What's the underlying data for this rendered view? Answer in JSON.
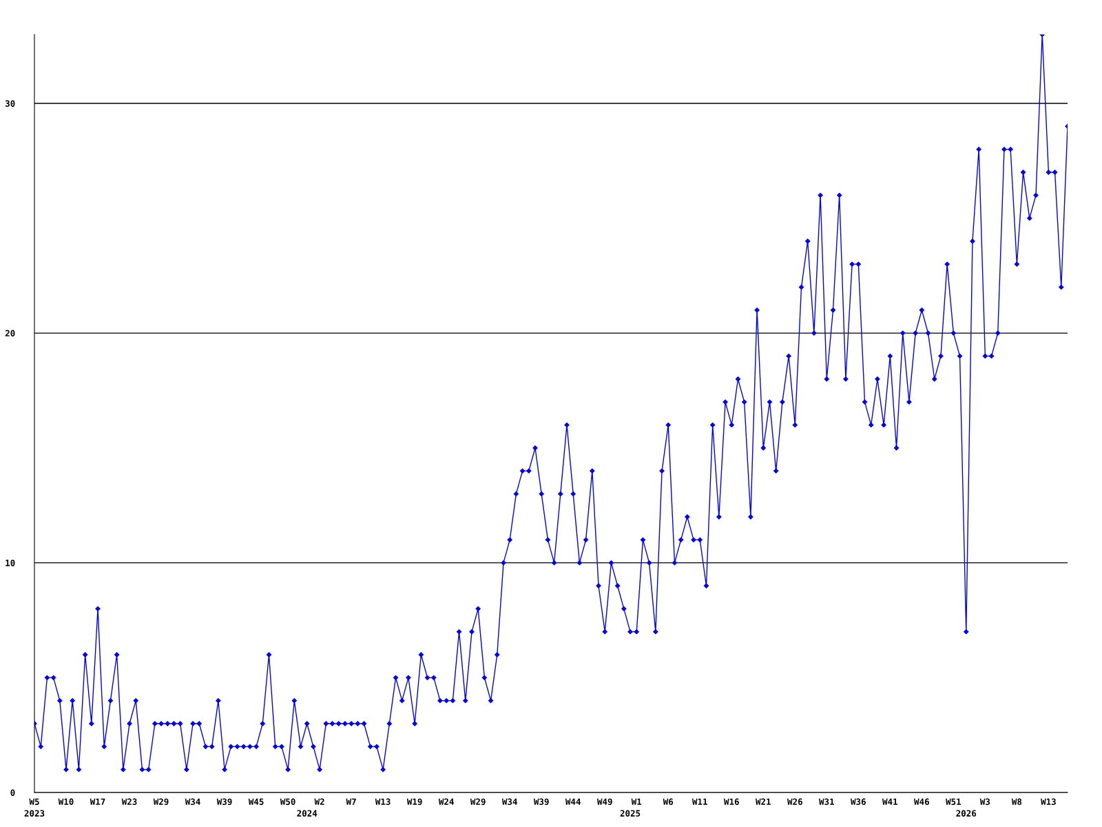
{
  "chart_data": {
    "type": "line",
    "categories": [
      "W5\n2023",
      null,
      null,
      null,
      null,
      "W10",
      null,
      null,
      null,
      null,
      "W17",
      null,
      null,
      null,
      null,
      "W23",
      null,
      null,
      null,
      null,
      "W29",
      null,
      null,
      null,
      null,
      "W34",
      null,
      null,
      null,
      null,
      "W39",
      null,
      null,
      null,
      null,
      "W45",
      null,
      null,
      null,
      null,
      "W50",
      null,
      null,
      "\n2024",
      null,
      "W2",
      null,
      null,
      null,
      null,
      "W7",
      null,
      null,
      null,
      null,
      "W13",
      null,
      null,
      null,
      null,
      "W19",
      null,
      null,
      null,
      null,
      "W24",
      null,
      null,
      null,
      null,
      "W29",
      null,
      null,
      null,
      null,
      "W34",
      null,
      null,
      null,
      null,
      "W39",
      null,
      null,
      null,
      null,
      "W44",
      null,
      null,
      null,
      null,
      "W49",
      null,
      null,
      null,
      "\n2025",
      "W1",
      null,
      null,
      null,
      null,
      "W6",
      null,
      null,
      null,
      null,
      "W11",
      null,
      null,
      null,
      null,
      "W16",
      null,
      null,
      null,
      null,
      "W21",
      null,
      null,
      null,
      null,
      "W26",
      null,
      null,
      null,
      null,
      "W31",
      null,
      null,
      null,
      null,
      "W36",
      null,
      null,
      null,
      null,
      "W41",
      null,
      null,
      null,
      null,
      "W46",
      null,
      null,
      null,
      null,
      "W51",
      null,
      "\n2026",
      null,
      null,
      "W3",
      null,
      null,
      null,
      null,
      "W8",
      null,
      null,
      null,
      null,
      "W13",
      null,
      null,
      null
    ],
    "series": [
      {
        "color": "#0000ff",
        "values": [
          3,
          2,
          5,
          5,
          4,
          1,
          4,
          1,
          6,
          3,
          8,
          2,
          4,
          6,
          1,
          3,
          4,
          1,
          1,
          3,
          3,
          3,
          3,
          3,
          1,
          3,
          3,
          2,
          2,
          4,
          1,
          2,
          2,
          2,
          2,
          2,
          3,
          6,
          2,
          2,
          1,
          4,
          2,
          3,
          2,
          1,
          3,
          3,
          3,
          3,
          3,
          3,
          3,
          2,
          2,
          1,
          3,
          5,
          4,
          5,
          3,
          6,
          5,
          5,
          4,
          4,
          4,
          7,
          4,
          7,
          8,
          5,
          4,
          6,
          10,
          11,
          13,
          14,
          14,
          15,
          13,
          11,
          10,
          13,
          16,
          13,
          10,
          11,
          14,
          9,
          7,
          10,
          9,
          8,
          7,
          7,
          11,
          10,
          7,
          14,
          16,
          10,
          11,
          12,
          11,
          11,
          9,
          16,
          12,
          17,
          16,
          18,
          17,
          12,
          21,
          15,
          17,
          14,
          17,
          19,
          16,
          22,
          24,
          20,
          26,
          18,
          21,
          26,
          18,
          23,
          23,
          17,
          16,
          18,
          16,
          19,
          15,
          20,
          17,
          20,
          21,
          20,
          18,
          19,
          23,
          20,
          19,
          7,
          24,
          28,
          19,
          19,
          20,
          28,
          28,
          23,
          27,
          25,
          26,
          33,
          27,
          27,
          22,
          29
        ]
      }
    ],
    "ylim": [
      0,
      33
    ],
    "yticks": [
      0,
      10,
      20,
      30
    ],
    "grid": "y",
    "marker": "diamond",
    "line_style": "solid"
  }
}
